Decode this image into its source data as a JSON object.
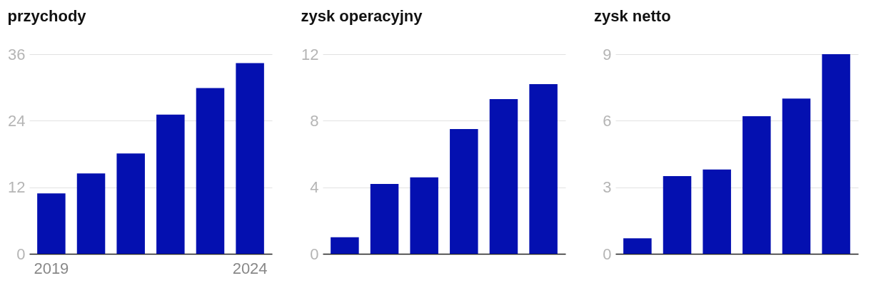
{
  "chart_data": [
    {
      "type": "bar",
      "title": "przychody",
      "categories": [
        "2019",
        null,
        null,
        null,
        null,
        "2024"
      ],
      "values": [
        10.9,
        14.5,
        18.1,
        25.1,
        29.9,
        34.4
      ],
      "color": "#0410b0",
      "ylim": [
        0,
        36
      ],
      "yticks": [
        0,
        12,
        24,
        36
      ],
      "grid": "y"
    },
    {
      "type": "bar",
      "title": "zysk operacyjny",
      "categories": [
        null,
        null,
        null,
        null,
        null,
        null
      ],
      "values": [
        1.0,
        4.2,
        4.6,
        7.5,
        9.3,
        10.2
      ],
      "color": "#0410b0",
      "ylim": [
        0,
        12
      ],
      "yticks": [
        0,
        4,
        8,
        12
      ],
      "grid": "y",
      "tick_labels": "y"
    },
    {
      "type": "bar",
      "title": "zysk netto",
      "categories": [
        null,
        null,
        null,
        null,
        null,
        null
      ],
      "values": [
        0.7,
        3.5,
        3.8,
        6.2,
        7.0,
        9.0
      ],
      "color": "#0410b0",
      "ylim": [
        0,
        9
      ],
      "yticks": [
        0,
        3,
        6,
        9
      ],
      "grid": "y",
      "tick_labels": "y"
    }
  ]
}
